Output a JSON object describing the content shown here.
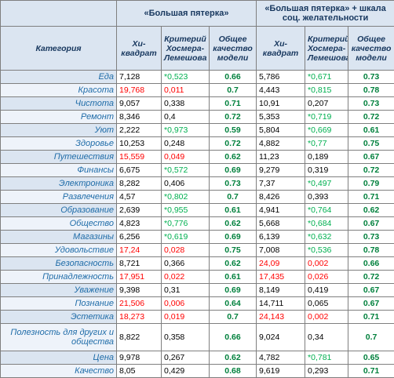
{
  "table": {
    "groups": [
      "«Большая пятерка»",
      "«Большая пятерка» + шкала соц. желательности"
    ],
    "columns": [
      "Категория",
      "Хи-квадрат",
      "Критерий Хосмера-Лемешова",
      "Общее качество модели",
      "Хи-квадрат",
      "Критерий Хосмера-Лемешова",
      "Общее качество модели"
    ],
    "rows": [
      [
        "Еда",
        "7,128",
        "*0,523",
        "0.66",
        "5,786",
        "*0,671",
        "0.73"
      ],
      [
        "Красота",
        "19,768",
        "0,011",
        "0.7",
        "4,443",
        "*0,815",
        "0.78"
      ],
      [
        "Чистота",
        "9,057",
        "0,338",
        "0.71",
        "10,91",
        "0,207",
        "0.73"
      ],
      [
        "Ремонт",
        "8,346",
        "0,4",
        "0.72",
        "5,353",
        "*0,719",
        "0.72"
      ],
      [
        "Уют",
        "2,222",
        "*0,973",
        "0.59",
        "5,804",
        "*0,669",
        "0.61"
      ],
      [
        "Здоровье",
        "10,253",
        "0,248",
        "0.72",
        "4,882",
        "*0,77",
        "0.75"
      ],
      [
        "Путешествия",
        "15,559",
        "0,049",
        "0.62",
        "11,23",
        "0,189",
        "0.67"
      ],
      [
        "Финансы",
        "6,675",
        "*0,572",
        "0.69",
        "9,279",
        "0,319",
        "0.72"
      ],
      [
        "Электроника",
        "8,282",
        "0,406",
        "0.73",
        "7,37",
        "*0,497",
        "0.79"
      ],
      [
        "Развлечения",
        "4,57",
        "*0,802",
        "0.7",
        "8,426",
        "0,393",
        "0.71"
      ],
      [
        "Образование",
        "2,639",
        "*0,955",
        "0.61",
        "4,941",
        "*0,764",
        "0.62"
      ],
      [
        "Общество",
        "4,823",
        "*0,776",
        "0.62",
        "5,668",
        "*0,684",
        "0.67"
      ],
      [
        "Магазины",
        "6,256",
        "*0,619",
        "0.69",
        "6,139",
        "*0,632",
        "0.73"
      ],
      [
        "Удовольствие",
        "17,24",
        "0,028",
        "0.75",
        "7,008",
        "*0,536",
        "0.78"
      ],
      [
        "Безопасность",
        "8,721",
        "0,366",
        "0.62",
        "24,09",
        "0,002",
        "0.66"
      ],
      [
        "Принадлежность",
        "17,951",
        "0,022",
        "0.61",
        "17,435",
        "0,026",
        "0.72"
      ],
      [
        "Уважение",
        "9,398",
        "0,31",
        "0.69",
        "8,149",
        "0,419",
        "0.67"
      ],
      [
        "Познание",
        "21,506",
        "0,006",
        "0.64",
        "14,711",
        "0,065",
        "0.67"
      ],
      [
        "Эстетика",
        "18,273",
        "0,019",
        "0.7",
        "24,143",
        "0,002",
        "0.71"
      ],
      [
        "Полезность для других и общества",
        "8,822",
        "0,358",
        "0.66",
        "9,024",
        "0,34",
        "0.7"
      ],
      [
        "Цена",
        "9,978",
        "0,267",
        "0.62",
        "4,782",
        "*0,781",
        "0.65"
      ],
      [
        "Качество",
        "8,05",
        "0,429",
        "0.68",
        "9,619",
        "0,293",
        "0.71"
      ]
    ],
    "colors": {
      "significant": "#ff0000",
      "good": "#00b050",
      "quality": "#00803c"
    }
  }
}
